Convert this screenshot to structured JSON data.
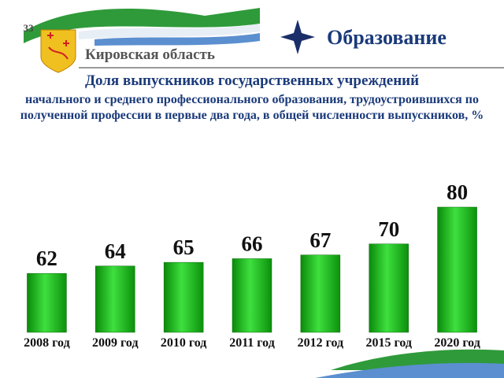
{
  "header": {
    "page_number": "33",
    "region": "Кировская область",
    "section": "Образование"
  },
  "chart_data": {
    "type": "bar",
    "title": "Доля выпускников государственных учреждений",
    "subtitle": "начального и среднего профессионального образования, трудоустроившихся по полученной профессии в первые два года, в общей численности выпускников, %",
    "categories": [
      "2008 год",
      "2009 год",
      "2010 год",
      "2011 год",
      "2012 год",
      "2015 год",
      "2020 год"
    ],
    "values": [
      62,
      64,
      65,
      66,
      67,
      70,
      80
    ],
    "color": "#1fc41f",
    "ylim": [
      46,
      80
    ]
  }
}
